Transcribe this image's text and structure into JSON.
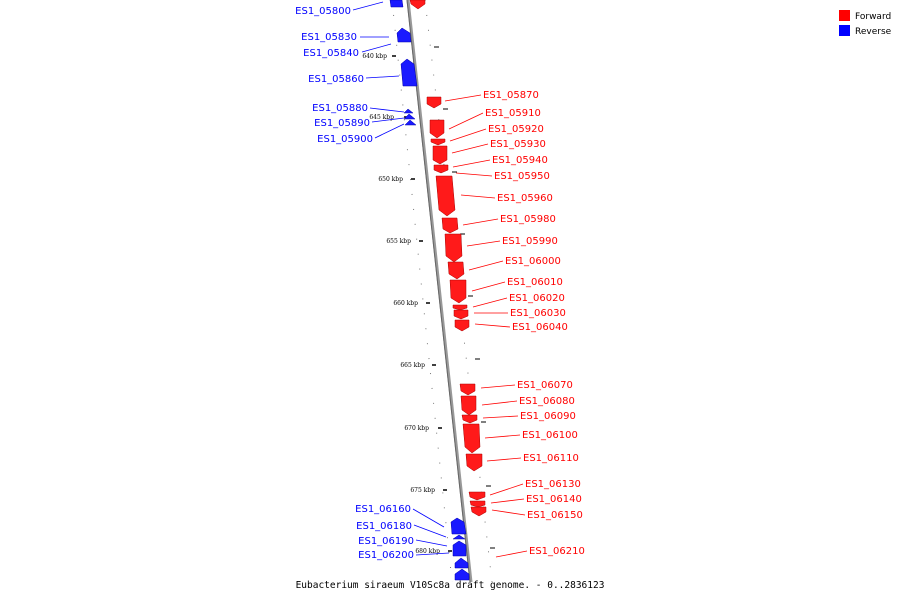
{
  "caption": "Eubacterium siraeum V10Sc8a draft genome. - 0..2836123",
  "legend": [
    {
      "label": "Forward",
      "color": "#ff0000"
    },
    {
      "label": "Reverse",
      "color": "#0000ff"
    }
  ],
  "ticks": [
    "640 kbp",
    "645 kbp",
    "650 kbp",
    "655 kbp",
    "660 kbp",
    "665 kbp",
    "670 kbp",
    "675 kbp",
    "680 kbp"
  ],
  "reverse_genes": [
    "ES1_05800",
    "ES1_05830",
    "ES1_05840",
    "ES1_05860",
    "ES1_05880",
    "ES1_05890",
    "ES1_05900",
    "ES1_06160",
    "ES1_06180",
    "ES1_06190",
    "ES1_06200"
  ],
  "forward_genes": [
    "ES1_05870",
    "ES1_05910",
    "ES1_05920",
    "ES1_05930",
    "ES1_05940",
    "ES1_05950",
    "ES1_05960",
    "ES1_05980",
    "ES1_05990",
    "ES1_06000",
    "ES1_06010",
    "ES1_06020",
    "ES1_06030",
    "ES1_06040",
    "ES1_06070",
    "ES1_06080",
    "ES1_06090",
    "ES1_06100",
    "ES1_06110",
    "ES1_06130",
    "ES1_06140",
    "ES1_06150",
    "ES1_06210"
  ]
}
